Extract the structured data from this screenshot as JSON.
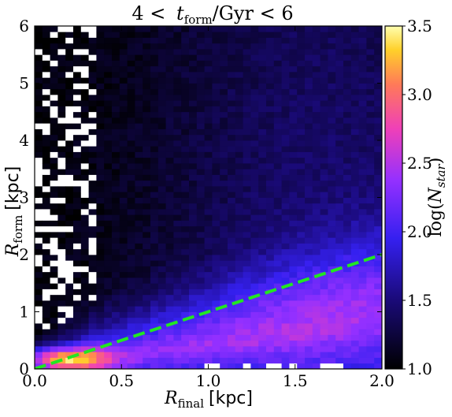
{
  "chart_data": {
    "type": "heatmap",
    "title": "4 < t_form/Gyr < 6",
    "title_parts": {
      "lhs": "4 <",
      "t": "t",
      "sub": "form",
      "rhs": "/Gyr < 6"
    },
    "xlabel": {
      "symbol": "R",
      "sub": "final",
      "unit": "[kpc]"
    },
    "ylabel": {
      "symbol": "R",
      "sub": "form",
      "unit": "[kpc]"
    },
    "colorbar_label": {
      "prefix": "log(",
      "symbol": "N",
      "sub": "star",
      "suffix": ")"
    },
    "xlim": [
      0.0,
      2.0
    ],
    "ylim": [
      0,
      6
    ],
    "clim": [
      1.0,
      3.5
    ],
    "bins": {
      "nx": 45,
      "ny": 60
    },
    "x_ticks": [
      "0.0",
      "0.5",
      "1.0",
      "1.5",
      "2.0"
    ],
    "x_tick_values": [
      0.0,
      0.5,
      1.0,
      1.5,
      2.0
    ],
    "y_ticks": [
      "0",
      "1",
      "2",
      "3",
      "4",
      "5",
      "6"
    ],
    "y_tick_values": [
      0,
      1,
      2,
      3,
      4,
      5,
      6
    ],
    "colorbar_ticks": [
      "1.0",
      "1.5",
      "2.0",
      "2.5",
      "3.0",
      "3.5"
    ],
    "colorbar_tick_values": [
      1.0,
      1.5,
      2.0,
      2.5,
      3.0,
      3.5
    ],
    "colormap": "gnuplot2",
    "empty_bin_color": "#ffffff",
    "reference_line": {
      "description": "R_form = R_final",
      "x": [
        0.0,
        2.0
      ],
      "y": [
        0.0,
        2.0
      ],
      "color": "#22e622",
      "style": "dashed"
    },
    "grid": false,
    "legend": "none"
  }
}
